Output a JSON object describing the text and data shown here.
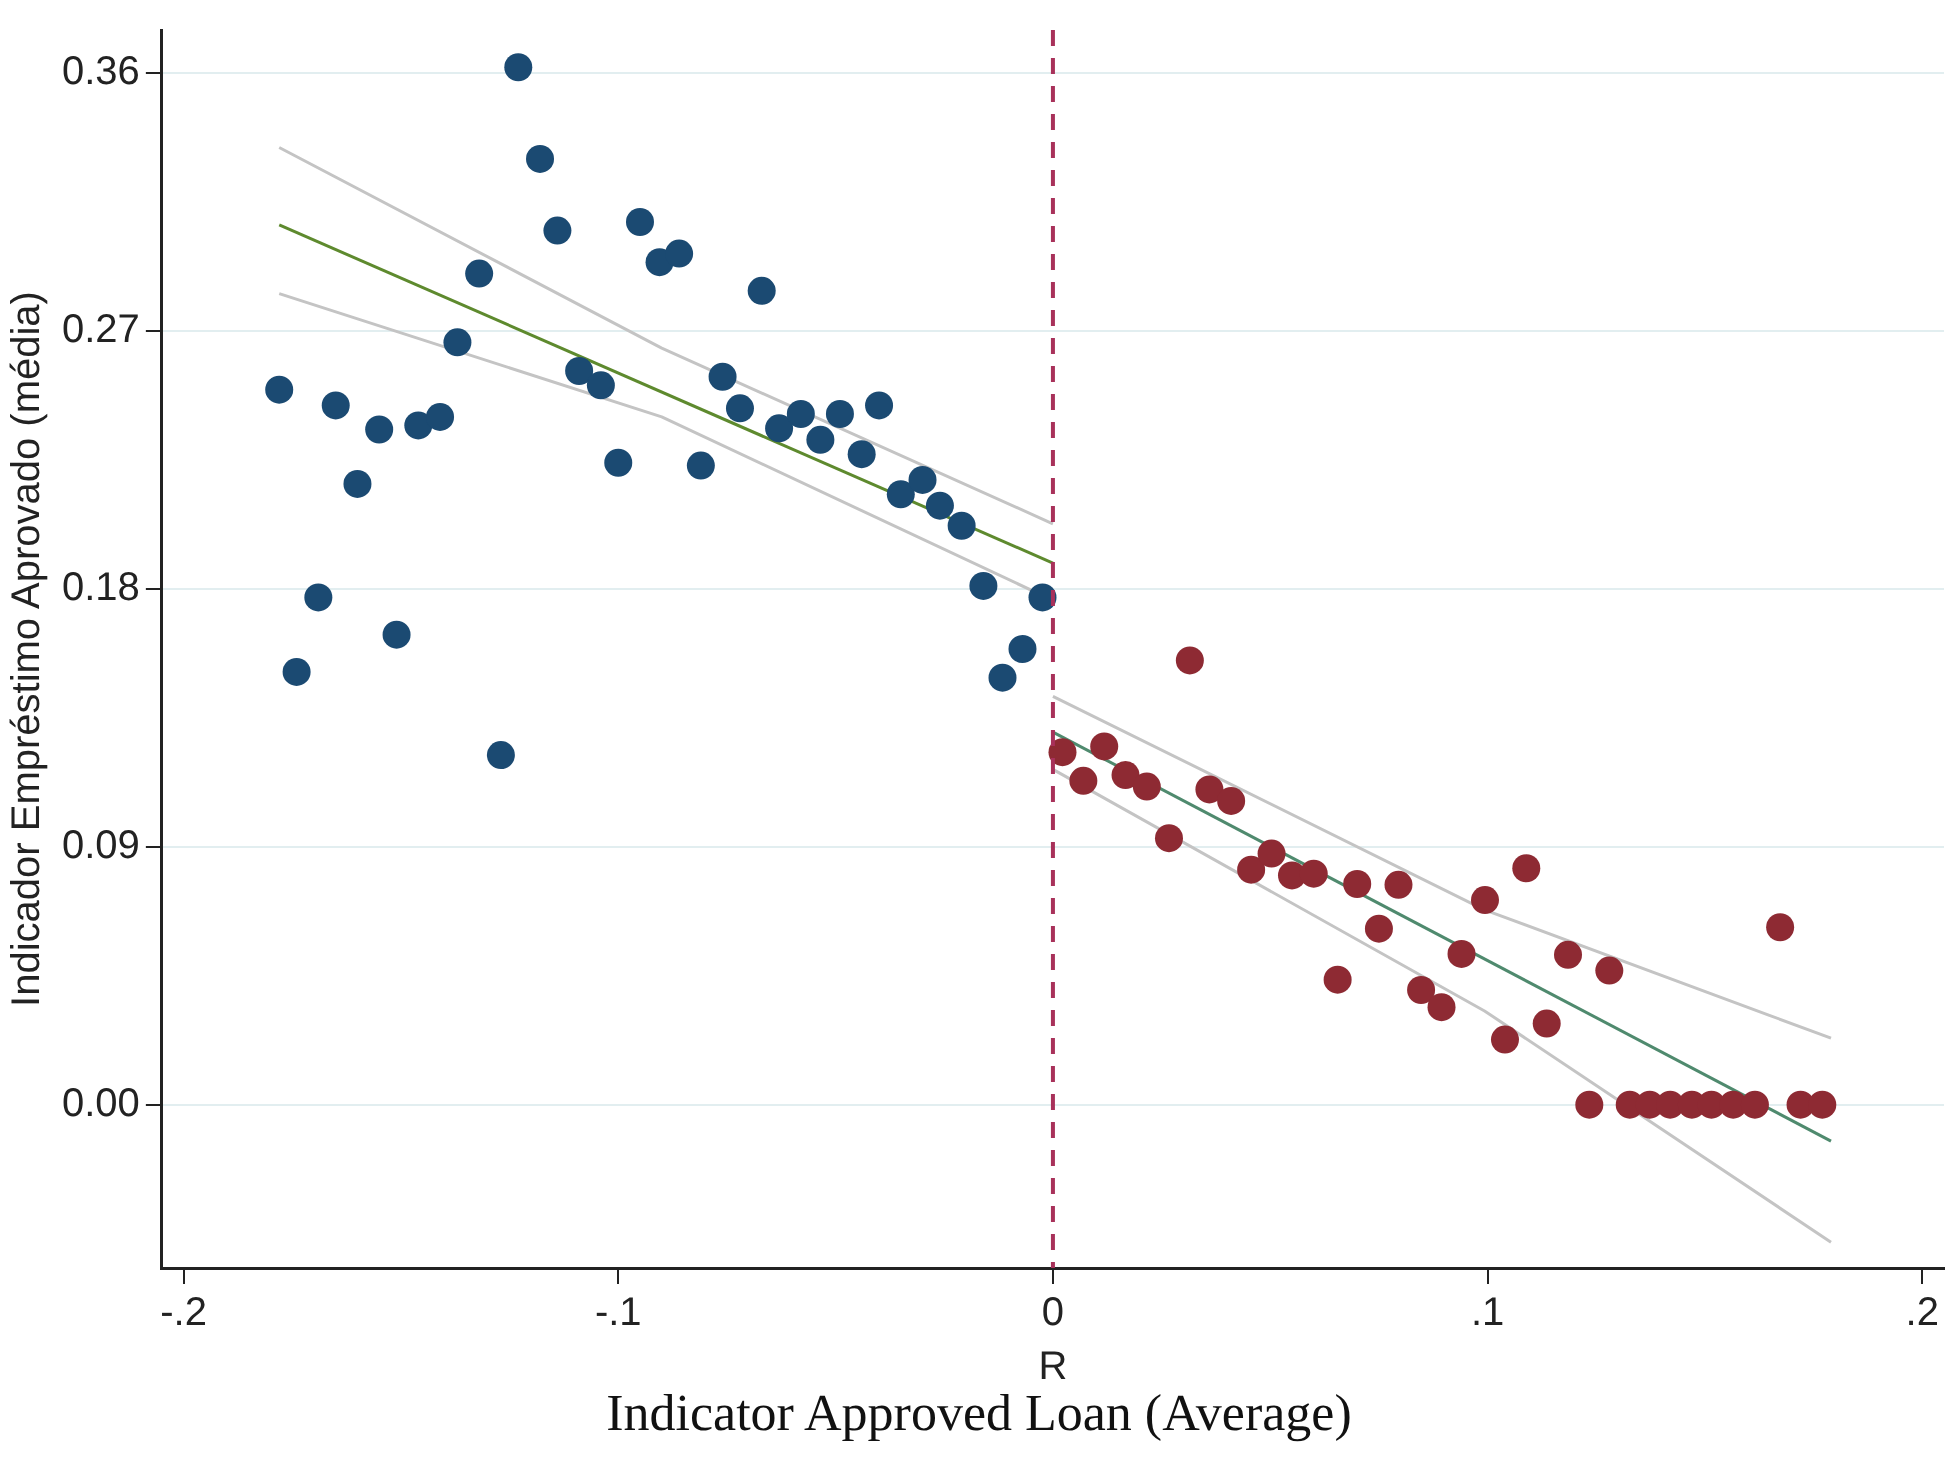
{
  "chart_data": {
    "type": "scatter",
    "xlabel": "R",
    "ylabel": "Indicador Empréstimo Aprovado (média)",
    "annotations": [
      "Indicator Approved Loan (Average)"
    ],
    "xlim": [
      -0.205,
      0.205
    ],
    "ylim": [
      -0.057,
      0.375
    ],
    "xticks": [
      {
        "value": -0.2,
        "label": "-.2"
      },
      {
        "value": -0.1,
        "label": "-.1"
      },
      0,
      {
        "value": 0.1,
        "label": ".1"
      },
      {
        "value": 0.2,
        "label": ".2"
      }
    ],
    "yticks": [
      {
        "value": 0,
        "label": "0.00"
      },
      {
        "value": 0.09,
        "label": "0.09"
      },
      {
        "value": 0.18,
        "label": "0.18"
      },
      {
        "value": 0.27,
        "label": "0.27"
      },
      {
        "value": 0.36,
        "label": "0.36"
      }
    ],
    "grid": "y",
    "legend": false,
    "marker": "circle",
    "ref_lines": [
      {
        "axis": "x",
        "value": 0,
        "color": "#a8315a",
        "line_style": "dashed"
      }
    ],
    "series": [
      {
        "type": "scatter",
        "color": "#1b4a72",
        "x": [
          -0.178,
          -0.174,
          -0.169,
          -0.165,
          -0.16,
          -0.155,
          -0.151,
          -0.146,
          -0.141,
          -0.137,
          -0.132,
          -0.127,
          -0.123,
          -0.118,
          -0.114,
          -0.109,
          -0.104,
          -0.1,
          -0.095,
          -0.0905,
          -0.086,
          -0.081,
          -0.076,
          -0.072,
          -0.067,
          -0.063,
          -0.058,
          -0.0535,
          -0.049,
          -0.044,
          -0.04,
          -0.035,
          -0.03,
          -0.026,
          -0.021,
          -0.016,
          -0.0116,
          -0.007,
          -0.0024
        ],
        "values": [
          0.2495,
          0.151,
          0.177,
          0.244,
          0.2166,
          0.2356,
          0.164,
          0.237,
          0.24,
          0.266,
          0.29,
          0.122,
          0.362,
          0.33,
          0.305,
          0.256,
          0.251,
          0.224,
          0.308,
          0.294,
          0.297,
          0.223,
          0.254,
          0.243,
          0.284,
          0.236,
          0.241,
          0.232,
          0.241,
          0.227,
          0.244,
          0.213,
          0.218,
          0.209,
          0.202,
          0.181,
          0.149,
          0.159,
          0.177
        ]
      },
      {
        "type": "scatter",
        "color": "#8e2a33",
        "x": [
          0.0022,
          0.007,
          0.0118,
          0.0167,
          0.0216,
          0.0267,
          0.0315,
          0.036,
          0.041,
          0.0456,
          0.0503,
          0.055,
          0.06,
          0.0655,
          0.07,
          0.075,
          0.0795,
          0.0847,
          0.0894,
          0.094,
          0.0994,
          0.104,
          0.1089,
          0.1136,
          0.1185,
          0.1234,
          0.128,
          0.1327,
          0.1373,
          0.142,
          0.147,
          0.1515,
          0.1565,
          0.1615,
          0.1673,
          0.172,
          0.177
        ],
        "values": [
          0.123,
          0.113,
          0.125,
          0.115,
          0.111,
          0.093,
          0.155,
          0.11,
          0.106,
          0.082,
          0.0876,
          0.08,
          0.0806,
          0.0436,
          0.077,
          0.0614,
          0.0767,
          0.04,
          0.034,
          0.0526,
          0.0714,
          0.0227,
          0.0825,
          0.0283,
          0.0523,
          0,
          0.0468,
          0,
          0,
          0,
          0,
          0,
          0,
          0,
          0.0619,
          0,
          0
        ]
      },
      {
        "type": "line",
        "marker": "none",
        "color": "#c4c4c4",
        "x": [
          -0.178,
          -0.09,
          0
        ],
        "values": [
          0.334,
          0.264,
          0.2027
        ]
      },
      {
        "type": "line",
        "marker": "none",
        "color": "#c4c4c4",
        "x": [
          -0.178,
          -0.09,
          0
        ],
        "values": [
          0.283,
          0.24,
          0.176
        ]
      },
      {
        "type": "line",
        "marker": "none",
        "color": "#5e8a2e",
        "x": [
          -0.178,
          0
        ],
        "values": [
          0.307,
          0.189
        ]
      },
      {
        "type": "line",
        "marker": "none",
        "color": "#c4c4c4",
        "x": [
          0,
          0.0993,
          0.179
        ],
        "values": [
          0.1425,
          0.068,
          0.0232
        ]
      },
      {
        "type": "line",
        "marker": "none",
        "color": "#c4c4c4",
        "x": [
          0,
          0.0993,
          0.179
        ],
        "values": [
          0.117,
          0.0327,
          -0.048
        ]
      },
      {
        "type": "line",
        "marker": "none",
        "color": "#4f8a6e",
        "x": [
          0,
          0.179
        ],
        "values": [
          0.13,
          -0.0127
        ]
      }
    ]
  }
}
